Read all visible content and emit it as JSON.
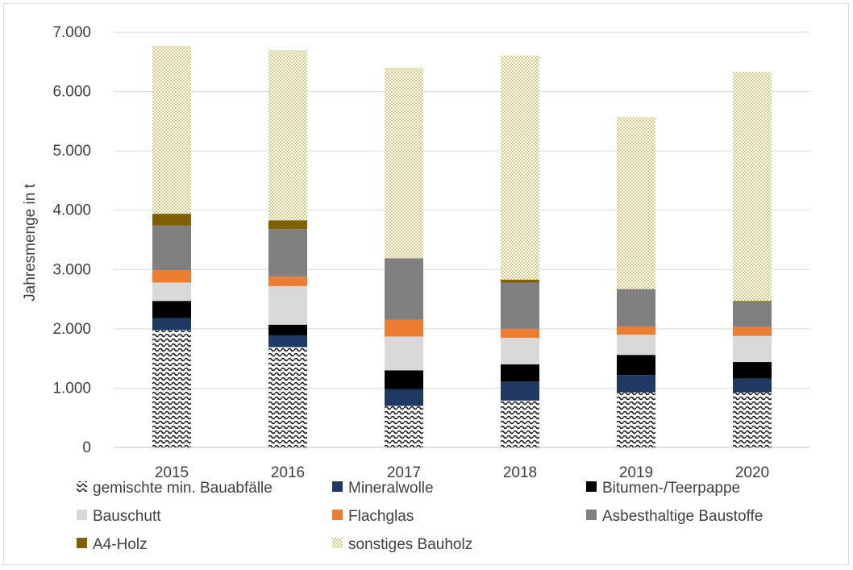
{
  "chart_data": {
    "type": "bar",
    "stacked": true,
    "categories": [
      "2015",
      "2016",
      "2017",
      "2018",
      "2019",
      "2020"
    ],
    "ylabel": "Jahresmenge in t",
    "xlabel": "",
    "ylim": [
      0,
      7000
    ],
    "yticks": [
      0,
      1000,
      2000,
      3000,
      4000,
      5000,
      6000,
      7000
    ],
    "ytick_labels": [
      "0",
      "1.000",
      "2.000",
      "3.000",
      "4.000",
      "5.000",
      "6.000",
      "7.000"
    ],
    "grid": true,
    "legend_position": "bottom",
    "series": [
      {
        "name": "gemischte min. Bauabfälle",
        "values": [
          1980,
          1690,
          700,
          790,
          930,
          930
        ],
        "color": "#1a1a1a",
        "pattern": "wave"
      },
      {
        "name": "Mineralwolle",
        "values": [
          200,
          200,
          280,
          320,
          290,
          230
        ],
        "color": "#203864",
        "pattern": "solid"
      },
      {
        "name": "Bitumen-/Teerpappe",
        "values": [
          290,
          180,
          320,
          290,
          340,
          280
        ],
        "color": "#000000",
        "pattern": "solid"
      },
      {
        "name": "Bauschutt",
        "values": [
          310,
          650,
          570,
          450,
          340,
          440
        ],
        "color": "#d9d9d9",
        "pattern": "solid"
      },
      {
        "name": "Flachglas",
        "values": [
          210,
          160,
          280,
          150,
          140,
          150
        ],
        "color": "#ed7d31",
        "pattern": "solid"
      },
      {
        "name": "Asbesthaltige Baustoffe",
        "values": [
          750,
          800,
          1040,
          780,
          630,
          420
        ],
        "color": "#808080",
        "pattern": "solid"
      },
      {
        "name": "A4-Holz",
        "values": [
          200,
          150,
          0,
          50,
          0,
          20
        ],
        "color": "#7f6000",
        "pattern": "solid"
      },
      {
        "name": "sonstiges Bauholz",
        "values": [
          2830,
          2870,
          3210,
          3780,
          2900,
          3860
        ],
        "color": "#c9a227",
        "pattern": "dots"
      }
    ]
  }
}
